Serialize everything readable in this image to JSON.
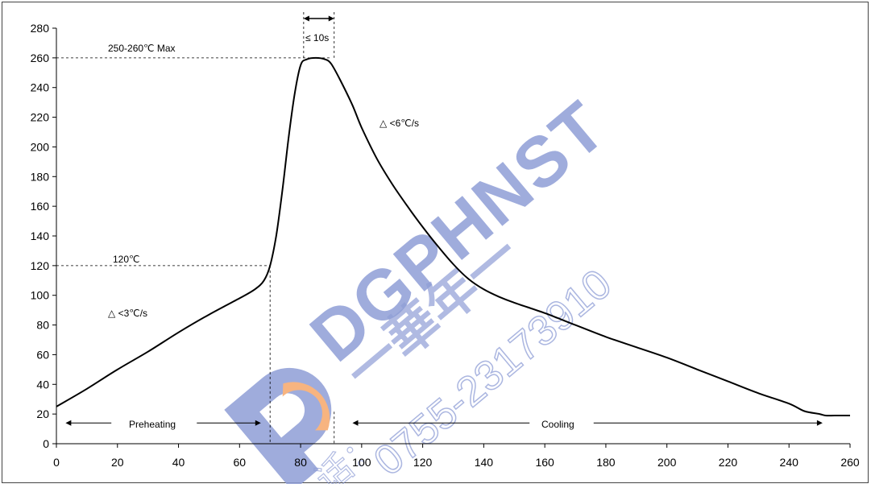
{
  "watermark": {
    "text_en": "DGPHNST",
    "text_cn": "一華年一",
    "phone": "0755-23173910",
    "prefix": "话：",
    "color_blue": "#8f9ed6",
    "color_orange": "#f6a86a"
  },
  "chart_data": {
    "type": "line",
    "title": "",
    "xlabel": "",
    "ylabel": "",
    "xlim": [
      0,
      260
    ],
    "ylim": [
      0,
      280
    ],
    "xticks": [
      "0",
      "20",
      "40",
      "60",
      "80",
      "100",
      "120",
      "140",
      "160",
      "180",
      "200",
      "220",
      "240",
      "260"
    ],
    "yticks": [
      "0",
      "20",
      "40",
      "60",
      "80",
      "100",
      "120",
      "140",
      "160",
      "180",
      "200",
      "220",
      "240",
      "260",
      "280"
    ],
    "grid": false,
    "series": [
      {
        "color": "#000000",
        "points": [
          [
            0,
            25
          ],
          [
            10,
            37
          ],
          [
            20,
            50
          ],
          [
            30,
            62
          ],
          [
            40,
            75
          ],
          [
            50,
            87
          ],
          [
            60,
            98
          ],
          [
            65,
            104
          ],
          [
            68,
            110
          ],
          [
            70,
            120
          ],
          [
            72,
            140
          ],
          [
            74,
            170
          ],
          [
            76,
            205
          ],
          [
            78,
            235
          ],
          [
            80,
            255
          ],
          [
            82,
            259
          ],
          [
            85,
            260
          ],
          [
            88,
            259
          ],
          [
            90,
            256
          ],
          [
            93,
            245
          ],
          [
            97,
            228
          ],
          [
            100,
            213
          ],
          [
            105,
            192
          ],
          [
            110,
            175
          ],
          [
            115,
            160
          ],
          [
            120,
            146
          ],
          [
            125,
            133
          ],
          [
            130,
            121
          ],
          [
            135,
            111
          ],
          [
            140,
            104
          ],
          [
            145,
            99
          ],
          [
            150,
            95
          ],
          [
            160,
            88
          ],
          [
            170,
            80
          ],
          [
            180,
            72
          ],
          [
            190,
            65
          ],
          [
            200,
            58
          ],
          [
            210,
            50
          ],
          [
            220,
            42
          ],
          [
            230,
            34
          ],
          [
            240,
            27
          ],
          [
            245,
            22
          ],
          [
            250,
            20
          ],
          [
            252,
            19
          ],
          [
            255,
            19
          ],
          [
            260,
            19
          ]
        ]
      }
    ],
    "guides": {
      "max_temp": 260,
      "max_temp_until_x": 90,
      "preheat_end_temp": 120,
      "preheat_end_x": 70,
      "peak_window": [
        81,
        91
      ],
      "preheat_range": [
        3,
        67
      ],
      "cooling_range": [
        97,
        251
      ],
      "cooling_start_marker_x": 91,
      "phase_arrow_y": 14
    },
    "annotations": {
      "max_label": "250-260℃ Max",
      "peak_time": "≤ 10s",
      "preheat_temp_label": "120℃",
      "heating_rate": "△ <3℃/s",
      "cooling_rate": "△ <6℃/s",
      "preheating": "Preheating",
      "cooling": "Cooling"
    }
  }
}
